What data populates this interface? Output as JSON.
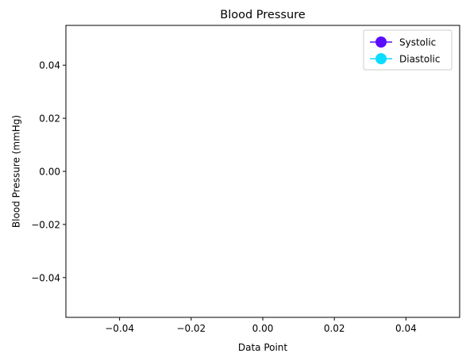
{
  "chart_data": {
    "type": "line",
    "title": "Blood Pressure",
    "xlabel": "Data Point",
    "ylabel": "Blood Pressure (mmHg)",
    "xlim": [
      -0.055,
      0.055
    ],
    "ylim": [
      -0.055,
      0.055
    ],
    "x_ticks": [
      -0.04,
      -0.02,
      0.0,
      0.02,
      0.04
    ],
    "x_tick_labels": [
      "−0.04",
      "−0.02",
      "0.00",
      "0.02",
      "0.04"
    ],
    "y_ticks": [
      -0.04,
      -0.02,
      0.0,
      0.02,
      0.04
    ],
    "y_tick_labels": [
      "−0.04",
      "−0.02",
      "0.00",
      "0.02",
      "0.04"
    ],
    "grid": false,
    "legend_position": "top-right",
    "series": [
      {
        "name": "Systolic",
        "color": "#5a0cff",
        "marker": "circle",
        "x": [],
        "y": []
      },
      {
        "name": "Diastolic",
        "color": "#0cdcff",
        "marker": "circle",
        "x": [],
        "y": []
      }
    ]
  }
}
